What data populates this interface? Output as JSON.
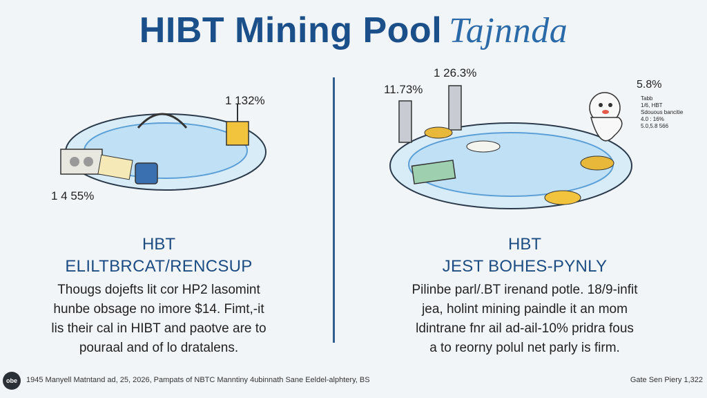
{
  "title": {
    "main": "HIBT Mining Pool",
    "script": "Tajnnda"
  },
  "left": {
    "labels": {
      "top_right": "1 132%",
      "bottom_left": "1 4 55%"
    },
    "heading1": "HBT",
    "heading2": "ELILTBRCAT/RENCSUP",
    "body": [
      "Thougs dojefts lit cor HP2 lasomint",
      "hunbe obsage no imore $14. Fimt,-it",
      "lis their cal in HIBT and paotve are to",
      "pouraal and of lo dratalens."
    ]
  },
  "right": {
    "labels": {
      "top_center": "1 26.3%",
      "top_left": "11.73%",
      "top_right": "5.8%",
      "small_lines": [
        "Tabb",
        "1/6, HBT",
        "Sdouous bancitie",
        "4.0 : 16%",
        "5.0,5.8 566"
      ]
    },
    "heading1": "HBT",
    "heading2": "JEST BOHES-PYNLY",
    "body": [
      "Pilinbe parl/.BT irenand potle. 18/9-infit",
      "jea, holint mining paindle it an mom",
      "ldintrane fnr ail ad-ail-10% pridra fous",
      "a to reorny polul net parly is firm."
    ]
  },
  "footer": {
    "logo": "obe",
    "left": "1945 Manyell Matntand ad, 25, 2026, Pampats of NBTC Manntiny 4ubinnath Sane Eeldel-alphtery, BS",
    "right": "Gate Sen Piery 1,322"
  },
  "colors": {
    "primary": "#1a4f8a",
    "water": "#bfe0f5",
    "rim": "#5b9fd6",
    "gold": "#e7b83a"
  }
}
